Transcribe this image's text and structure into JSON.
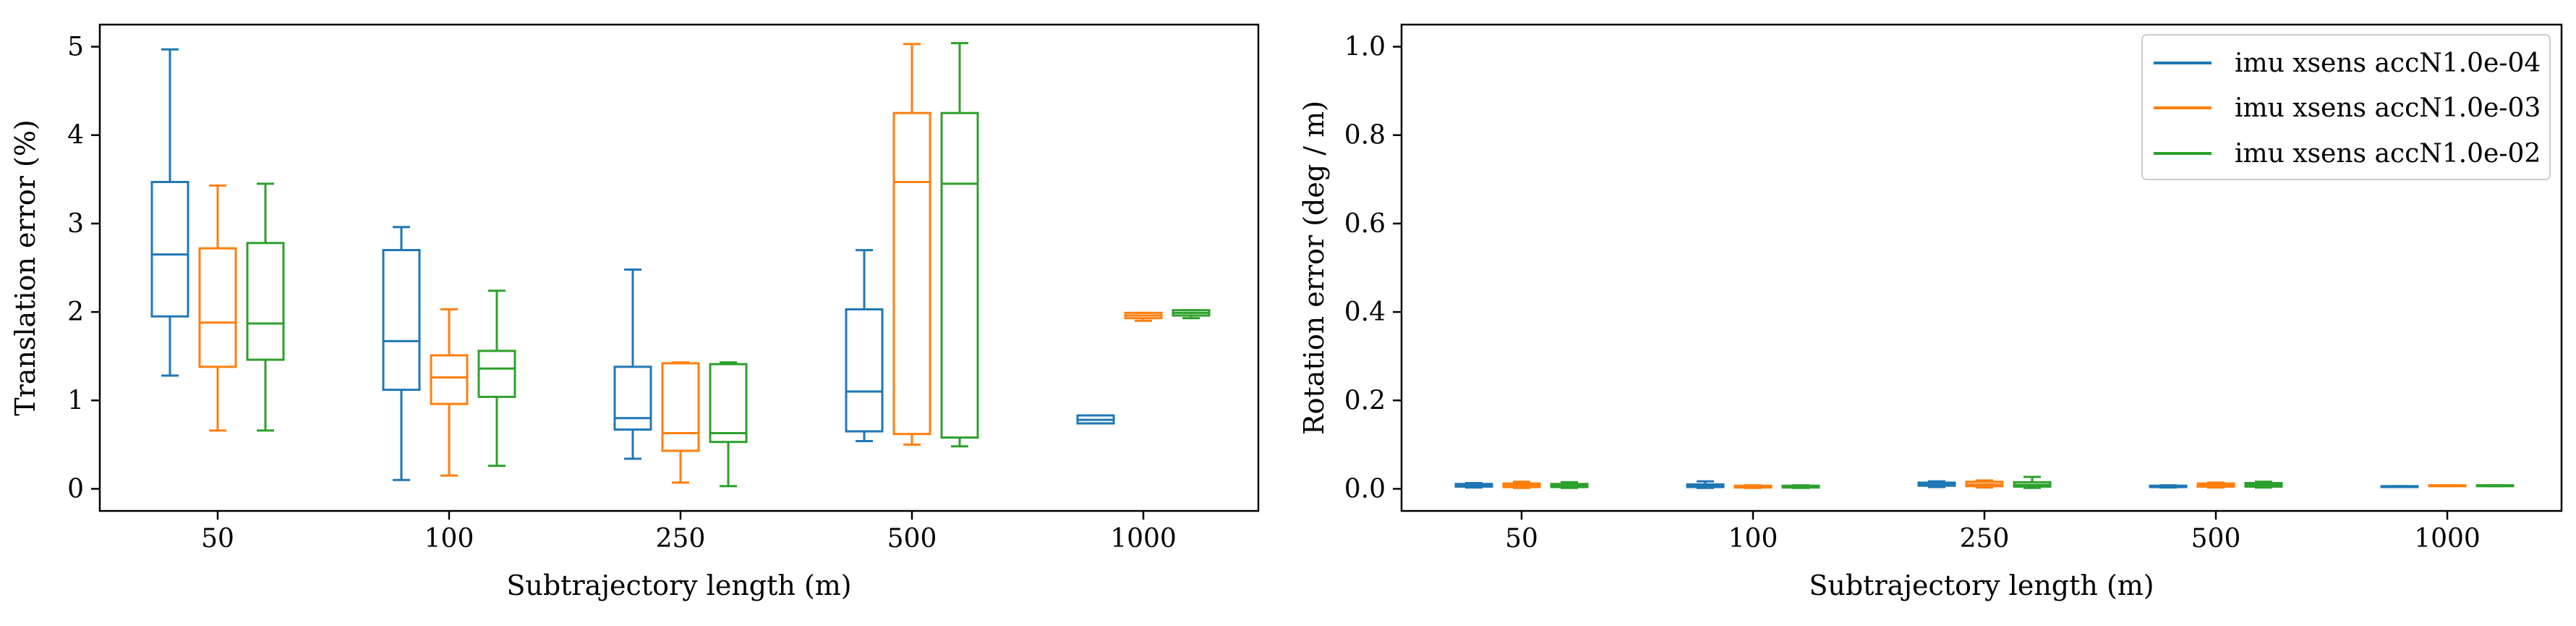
{
  "chart_data": [
    {
      "type": "boxplot",
      "xlabel": "Subtrajectory length (m)",
      "ylabel": "Translation error (%)",
      "categories": [
        "50",
        "100",
        "250",
        "500",
        "1000"
      ],
      "ylim": [
        -0.25,
        5.25
      ],
      "yticks": [
        "0",
        "1",
        "2",
        "3",
        "4",
        "5"
      ],
      "grid": false,
      "series": [
        {
          "name": "imu xsens accN1.0e-04",
          "color": "#1f77b4",
          "boxes": [
            {
              "whisker_low": 1.28,
              "q1": 1.95,
              "median": 2.65,
              "q3": 3.47,
              "whisker_high": 4.97
            },
            {
              "whisker_low": 0.1,
              "q1": 1.12,
              "median": 1.67,
              "q3": 2.7,
              "whisker_high": 2.96
            },
            {
              "whisker_low": 0.34,
              "q1": 0.67,
              "median": 0.8,
              "q3": 1.38,
              "whisker_high": 2.48
            },
            {
              "whisker_low": 0.54,
              "q1": 0.65,
              "median": 1.1,
              "q3": 2.03,
              "whisker_high": 2.7
            },
            {
              "whisker_low": 0.74,
              "q1": 0.74,
              "median": 0.78,
              "q3": 0.83,
              "whisker_high": 0.83
            }
          ]
        },
        {
          "name": "imu xsens accN1.0e-03",
          "color": "#ff7f0e",
          "boxes": [
            {
              "whisker_low": 0.66,
              "q1": 1.38,
              "median": 1.88,
              "q3": 2.72,
              "whisker_high": 3.43
            },
            {
              "whisker_low": 0.15,
              "q1": 0.96,
              "median": 1.26,
              "q3": 1.51,
              "whisker_high": 2.03
            },
            {
              "whisker_low": 0.07,
              "q1": 0.43,
              "median": 0.63,
              "q3": 1.42,
              "whisker_high": 1.43
            },
            {
              "whisker_low": 0.5,
              "q1": 0.62,
              "median": 3.47,
              "q3": 4.25,
              "whisker_high": 5.03
            },
            {
              "whisker_low": 1.9,
              "q1": 1.93,
              "median": 1.96,
              "q3": 1.99,
              "whisker_high": 1.99
            }
          ]
        },
        {
          "name": "imu xsens accN1.0e-02",
          "color": "#2ca02c",
          "boxes": [
            {
              "whisker_low": 0.66,
              "q1": 1.46,
              "median": 1.87,
              "q3": 2.78,
              "whisker_high": 3.45
            },
            {
              "whisker_low": 0.26,
              "q1": 1.04,
              "median": 1.36,
              "q3": 1.56,
              "whisker_high": 2.24
            },
            {
              "whisker_low": 0.03,
              "q1": 0.53,
              "median": 0.63,
              "q3": 1.41,
              "whisker_high": 1.43
            },
            {
              "whisker_low": 0.48,
              "q1": 0.58,
              "median": 3.45,
              "q3": 4.25,
              "whisker_high": 5.04
            },
            {
              "whisker_low": 1.93,
              "q1": 1.96,
              "median": 1.99,
              "q3": 2.02,
              "whisker_high": 2.02
            }
          ]
        }
      ]
    },
    {
      "type": "boxplot",
      "xlabel": "Subtrajectory length (m)",
      "ylabel": "Rotation error (deg / m)",
      "categories": [
        "50",
        "100",
        "250",
        "500",
        "1000"
      ],
      "ylim": [
        -0.05,
        1.05
      ],
      "yticks": [
        "0.0",
        "0.2",
        "0.4",
        "0.6",
        "0.8",
        "1.0"
      ],
      "grid": false,
      "legend_position": "top-right",
      "series": [
        {
          "name": "imu xsens accN1.0e-04",
          "color": "#1f77b4",
          "boxes": [
            {
              "whisker_low": 0.003,
              "q1": 0.005,
              "median": 0.008,
              "q3": 0.011,
              "whisker_high": 0.013
            },
            {
              "whisker_low": 0.002,
              "q1": 0.004,
              "median": 0.007,
              "q3": 0.01,
              "whisker_high": 0.017
            },
            {
              "whisker_low": 0.004,
              "q1": 0.007,
              "median": 0.01,
              "q3": 0.014,
              "whisker_high": 0.017
            },
            {
              "whisker_low": 0.003,
              "q1": 0.004,
              "median": 0.005,
              "q3": 0.007,
              "whisker_high": 0.008
            },
            {
              "whisker_low": 0.004,
              "q1": 0.004,
              "median": 0.005,
              "q3": 0.006,
              "whisker_high": 0.006
            }
          ]
        },
        {
          "name": "imu xsens accN1.0e-03",
          "color": "#ff7f0e",
          "boxes": [
            {
              "whisker_low": 0.002,
              "q1": 0.004,
              "median": 0.008,
              "q3": 0.012,
              "whisker_high": 0.016
            },
            {
              "whisker_low": 0.002,
              "q1": 0.003,
              "median": 0.005,
              "q3": 0.007,
              "whisker_high": 0.008
            },
            {
              "whisker_low": 0.003,
              "q1": 0.006,
              "median": 0.01,
              "q3": 0.016,
              "whisker_high": 0.019
            },
            {
              "whisker_low": 0.003,
              "q1": 0.005,
              "median": 0.009,
              "q3": 0.012,
              "whisker_high": 0.014
            },
            {
              "whisker_low": 0.006,
              "q1": 0.006,
              "median": 0.007,
              "q3": 0.008,
              "whisker_high": 0.008
            }
          ]
        },
        {
          "name": "imu xsens accN1.0e-02",
          "color": "#2ca02c",
          "boxes": [
            {
              "whisker_low": 0.002,
              "q1": 0.004,
              "median": 0.008,
              "q3": 0.011,
              "whisker_high": 0.015
            },
            {
              "whisker_low": 0.002,
              "q1": 0.003,
              "median": 0.005,
              "q3": 0.007,
              "whisker_high": 0.008
            },
            {
              "whisker_low": 0.002,
              "q1": 0.005,
              "median": 0.009,
              "q3": 0.015,
              "whisker_high": 0.027
            },
            {
              "whisker_low": 0.003,
              "q1": 0.005,
              "median": 0.009,
              "q3": 0.013,
              "whisker_high": 0.016
            },
            {
              "whisker_low": 0.006,
              "q1": 0.006,
              "median": 0.007,
              "q3": 0.008,
              "whisker_high": 0.008
            }
          ]
        }
      ]
    }
  ]
}
